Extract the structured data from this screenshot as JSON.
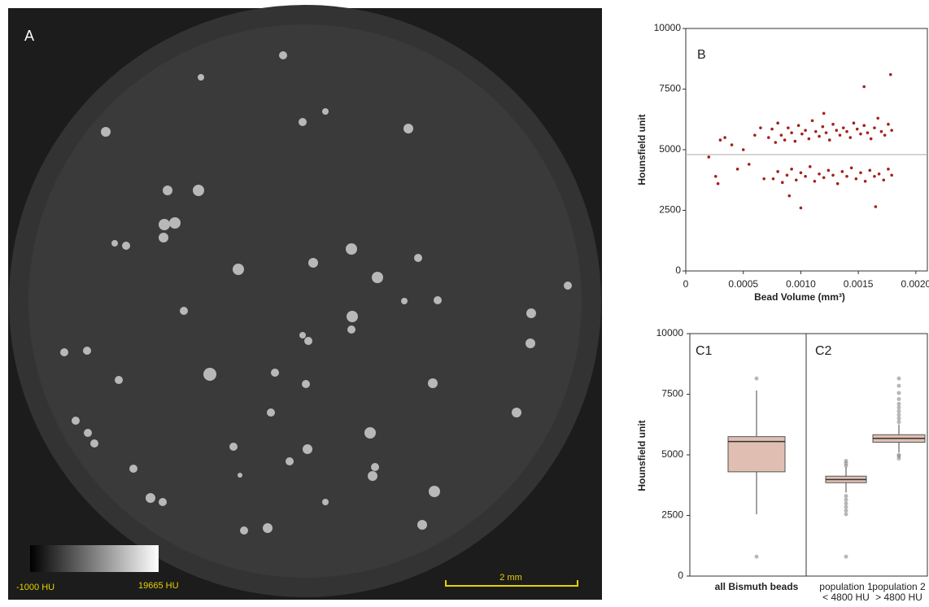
{
  "image_panel": {
    "label": "A",
    "colorbar_min_label": "-1000 HU",
    "colorbar_max_label": "19665 HU",
    "scale_bar_label": "2 mm"
  },
  "chart_data": [
    {
      "type": "scatter",
      "panel_label": "B",
      "x_label": "Bead Volume (mm³)",
      "y_label": "Hounsfield unit",
      "color": "#a3211b",
      "xlim": [
        0,
        0.0021
      ],
      "xticks": [
        0,
        0.0005,
        {
          "value": 0.001,
          "label": "0.0010"
        },
        0.0015,
        {
          "value": 0.002,
          "label": "0.0020"
        }
      ],
      "ylim": [
        0,
        10000
      ],
      "yticks": [
        0,
        2500,
        5000,
        7500,
        10000
      ],
      "hline": 4800,
      "x": [
        0.00072,
        0.00075,
        0.00078,
        0.0008,
        0.00083,
        0.00086,
        0.00089,
        0.00092,
        0.00095,
        0.00098,
        0.00101,
        0.00104,
        0.00107,
        0.0011,
        0.00113,
        0.00116,
        0.00119,
        0.00122,
        0.00125,
        0.00128,
        0.00131,
        0.00134,
        0.00137,
        0.0014,
        0.00143,
        0.00146,
        0.00149,
        0.00152,
        0.00155,
        0.00158,
        0.00161,
        0.00164,
        0.00167,
        0.0017,
        0.00173,
        0.00176,
        0.00179,
        0.0012,
        0.00155,
        0.00178,
        0.00076,
        0.0008,
        0.00084,
        0.00088,
        0.00092,
        0.00096,
        0.001,
        0.00104,
        0.00108,
        0.00112,
        0.00116,
        0.0012,
        0.00124,
        0.00128,
        0.00132,
        0.00136,
        0.0014,
        0.00144,
        0.00148,
        0.00152,
        0.00156,
        0.0016,
        0.00164,
        0.00168,
        0.00172,
        0.00176,
        0.00179,
        0.001,
        0.00165,
        0.0009,
        0.0002,
        0.00026,
        0.00028,
        0.0003,
        0.00034,
        0.0004,
        0.00045,
        0.0005,
        0.00055,
        0.0006,
        0.00065,
        0.00068
      ],
      "y": [
        5500,
        5850,
        5300,
        6100,
        5600,
        5400,
        5900,
        5700,
        5350,
        6000,
        5650,
        5800,
        5450,
        6200,
        5750,
        5550,
        5950,
        5700,
        5400,
        6050,
        5800,
        5600,
        5900,
        5750,
        5500,
        6100,
        5850,
        5650,
        6000,
        5700,
        5450,
        5900,
        6300,
        5750,
        5600,
        6050,
        5800,
        6500,
        7600,
        8100,
        3800,
        4100,
        3650,
        3950,
        4200,
        3750,
        4050,
        3900,
        4300,
        3700,
        4000,
        3850,
        4150,
        3950,
        3600,
        4100,
        3900,
        4250,
        3800,
        4050,
        3700,
        4150,
        3900,
        4000,
        3750,
        4200,
        3950,
        2600,
        2650,
        3100,
        4700,
        3900,
        3600,
        5400,
        5500,
        5200,
        4200,
        5000,
        4400,
        5600,
        5900,
        3800
      ]
    },
    {
      "type": "box",
      "panel_labels": [
        "C1",
        "C2"
      ],
      "y_label": "Hounsfield unit",
      "color": "#e0bfb2",
      "ylim": [
        0,
        10000
      ],
      "yticks": [
        0,
        2500,
        5000,
        7500,
        10000
      ],
      "categories": [
        [
          "all Bismuth beads"
        ],
        [
          "population 1",
          "< 4800 HU"
        ],
        [
          "population 2",
          "> 4800 HU"
        ]
      ],
      "boxes": [
        {
          "whisker_low": 2550,
          "q1": 4300,
          "median": 5550,
          "q3": 5750,
          "whisker_high": 7650,
          "outliers": [
            800,
            8150
          ]
        },
        {
          "whisker_low": 3450,
          "q1": 3850,
          "median": 3980,
          "q3": 4120,
          "whisker_high": 4500,
          "outliers": [
            800,
            2550,
            2700,
            2850,
            3000,
            3150,
            3300,
            4550,
            4650,
            4750
          ]
        },
        {
          "whisker_low": 5100,
          "q1": 5520,
          "median": 5680,
          "q3": 5830,
          "whisker_high": 6250,
          "outliers": [
            4850,
            4950,
            5000,
            6350,
            6500,
            6650,
            6800,
            6950,
            7100,
            7300,
            7550,
            7850,
            8150
          ]
        }
      ]
    }
  ]
}
